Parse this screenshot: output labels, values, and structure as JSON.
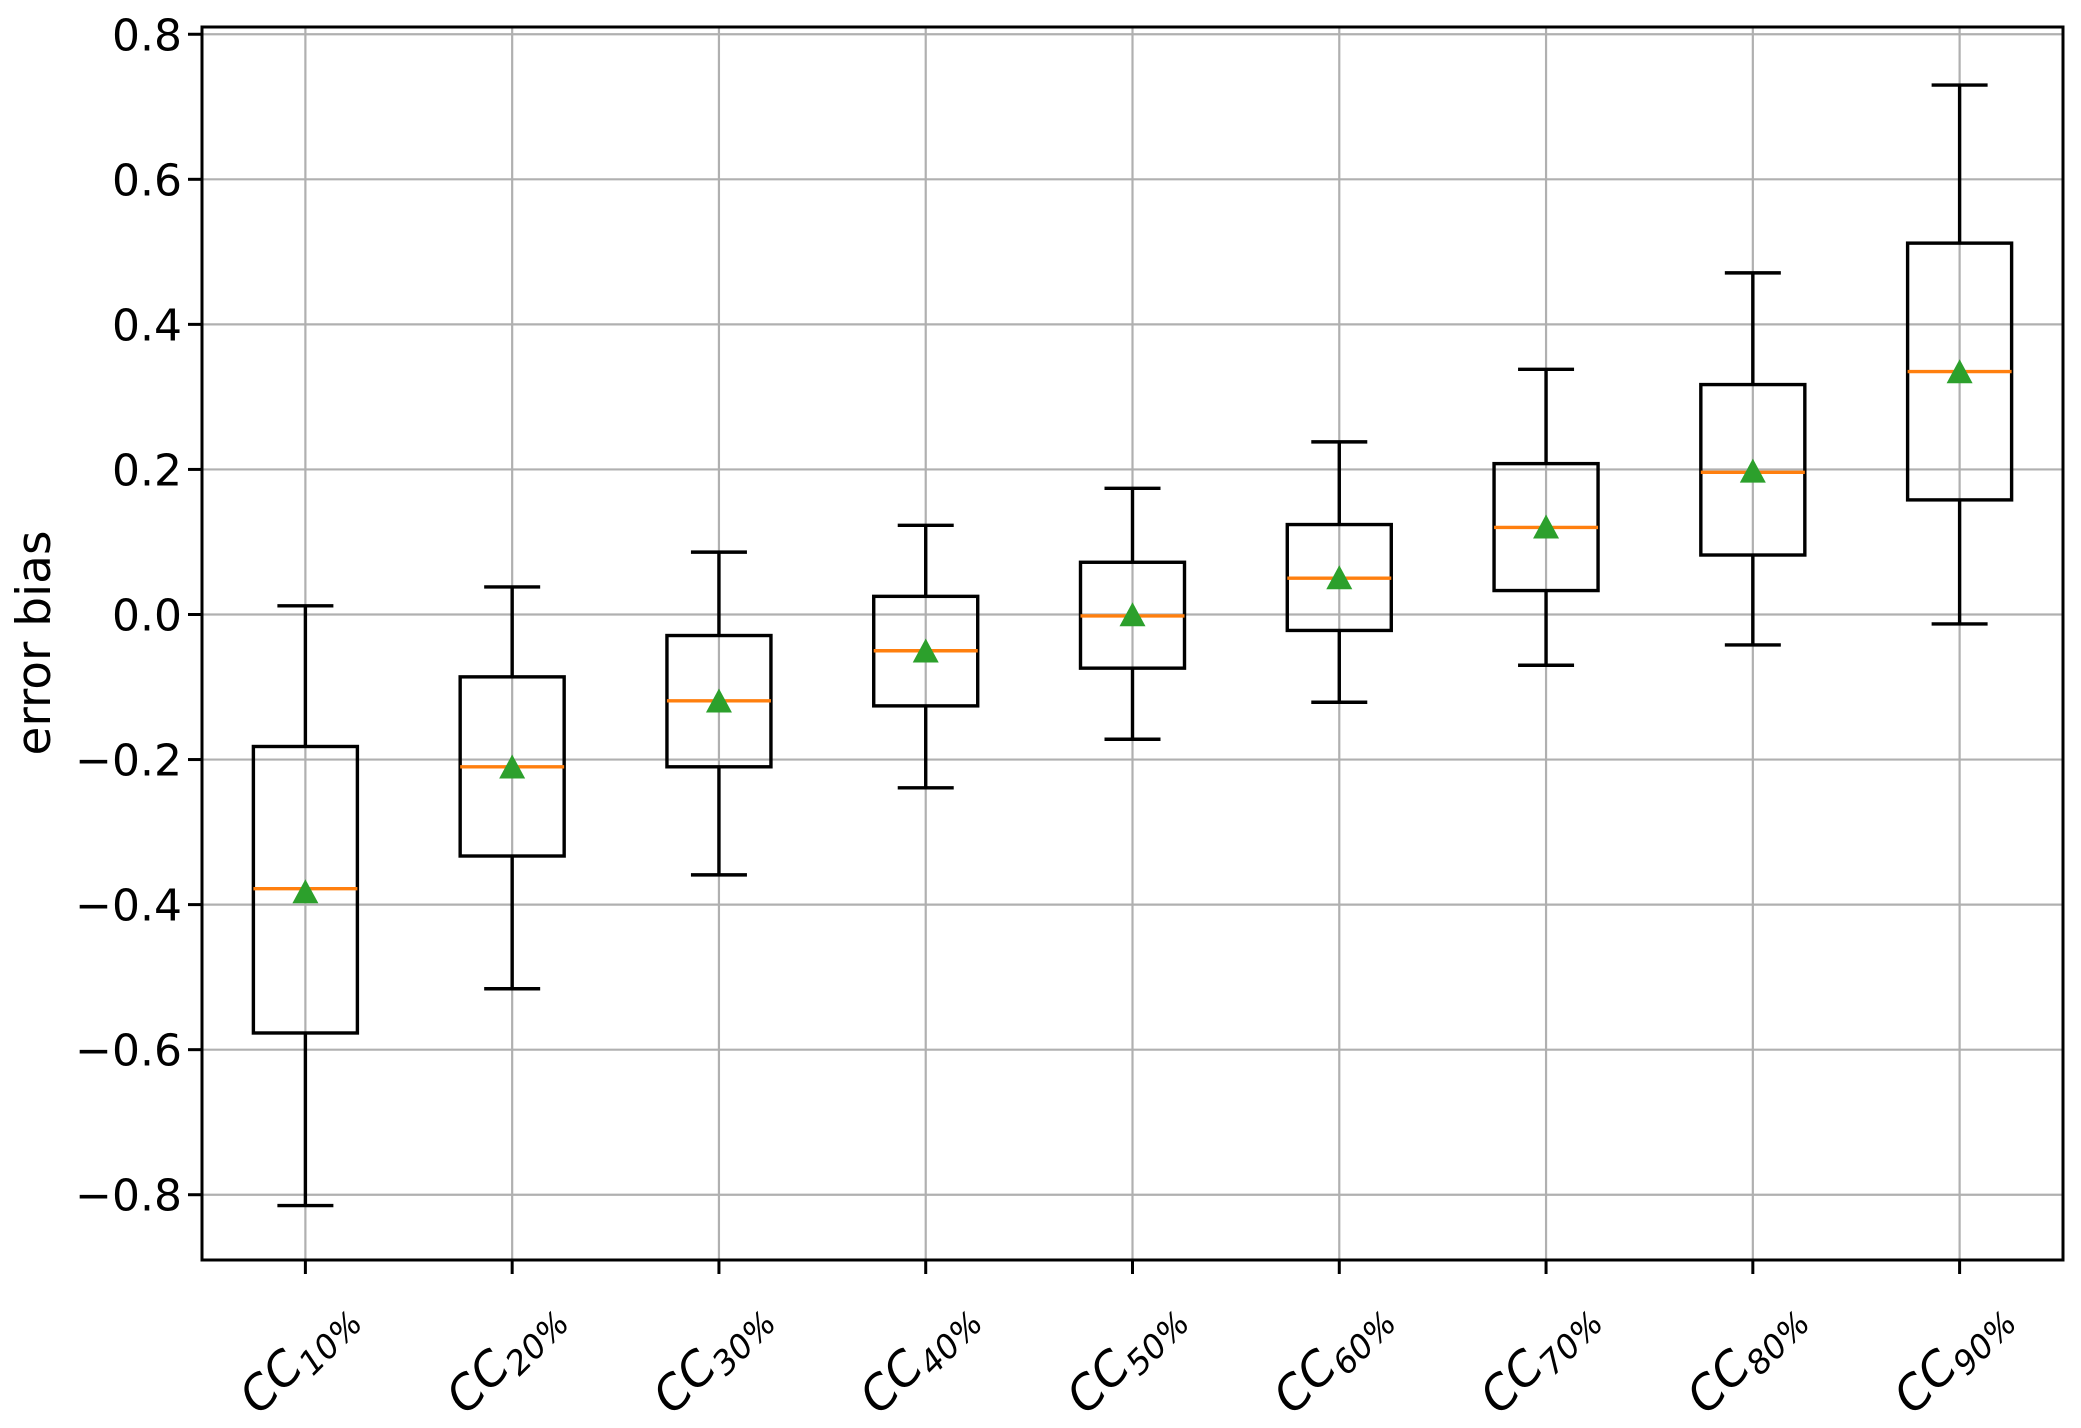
{
  "chart_data": {
    "type": "boxplot",
    "title": "",
    "xlabel": "",
    "ylabel": "error bias",
    "ylim": [
      -0.89,
      0.81
    ],
    "yticks": [
      0.8,
      0.6,
      0.4,
      0.2,
      0.0,
      -0.2,
      -0.4,
      -0.6,
      -0.8
    ],
    "grid": true,
    "legend": "none",
    "colors": {
      "box_line": "#000000",
      "median": "#ff7f0e",
      "mean_marker": "#2ca02c",
      "grid": "#b0b0b0",
      "background": "#ffffff"
    },
    "categories": [
      {
        "base": "CC",
        "sub": "10%"
      },
      {
        "base": "CC",
        "sub": "20%"
      },
      {
        "base": "CC",
        "sub": "30%"
      },
      {
        "base": "CC",
        "sub": "40%"
      },
      {
        "base": "CC",
        "sub": "50%"
      },
      {
        "base": "CC",
        "sub": "60%"
      },
      {
        "base": "CC",
        "sub": "70%"
      },
      {
        "base": "CC",
        "sub": "80%"
      },
      {
        "base": "CC",
        "sub": "90%"
      }
    ],
    "boxes": [
      {
        "label": "CC10%",
        "whisker_low": -0.815,
        "q1": -0.577,
        "median": -0.378,
        "mean": -0.383,
        "q3": -0.182,
        "whisker_high": 0.012
      },
      {
        "label": "CC20%",
        "whisker_low": -0.516,
        "q1": -0.333,
        "median": -0.21,
        "mean": -0.211,
        "q3": -0.086,
        "whisker_high": 0.038
      },
      {
        "label": "CC30%",
        "whisker_low": -0.359,
        "q1": -0.21,
        "median": -0.119,
        "mean": -0.12,
        "q3": -0.029,
        "whisker_high": 0.086
      },
      {
        "label": "CC40%",
        "whisker_low": -0.239,
        "q1": -0.126,
        "median": -0.05,
        "mean": -0.051,
        "q3": 0.025,
        "whisker_high": 0.123
      },
      {
        "label": "CC50%",
        "whisker_low": -0.172,
        "q1": -0.074,
        "median": -0.002,
        "mean": -0.001,
        "q3": 0.072,
        "whisker_high": 0.174
      },
      {
        "label": "CC60%",
        "whisker_low": -0.121,
        "q1": -0.022,
        "median": 0.05,
        "mean": 0.05,
        "q3": 0.124,
        "whisker_high": 0.238
      },
      {
        "label": "CC70%",
        "whisker_low": -0.07,
        "q1": 0.033,
        "median": 0.12,
        "mean": 0.12,
        "q3": 0.208,
        "whisker_high": 0.338
      },
      {
        "label": "CC80%",
        "whisker_low": -0.042,
        "q1": 0.082,
        "median": 0.196,
        "mean": 0.197,
        "q3": 0.317,
        "whisker_high": 0.471
      },
      {
        "label": "CC90%",
        "whisker_low": -0.013,
        "q1": 0.158,
        "median": 0.335,
        "mean": 0.334,
        "q3": 0.512,
        "whisker_high": 0.73
      }
    ]
  }
}
